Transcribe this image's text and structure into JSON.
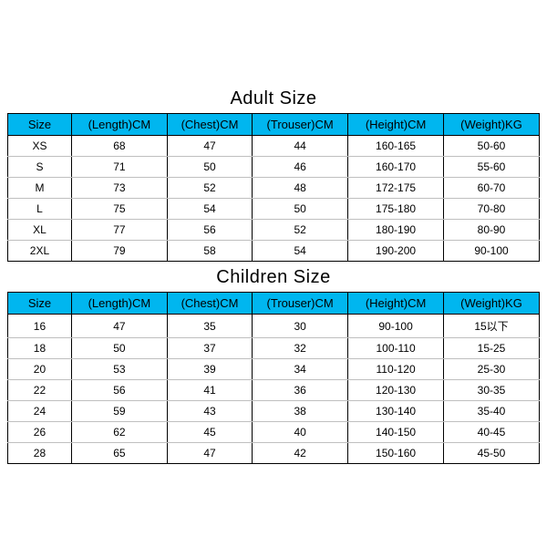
{
  "adult": {
    "title": "Adult Size",
    "header_bg": "#00b6ef",
    "columns": [
      "Size",
      "(Length)CM",
      "(Chest)CM",
      "(Trouser)CM",
      "(Height)CM",
      "(Weight)KG"
    ],
    "rows": [
      [
        "XS",
        "68",
        "47",
        "44",
        "160-165",
        "50-60"
      ],
      [
        "S",
        "71",
        "50",
        "46",
        "160-170",
        "55-60"
      ],
      [
        "M",
        "73",
        "52",
        "48",
        "172-175",
        "60-70"
      ],
      [
        "L",
        "75",
        "54",
        "50",
        "175-180",
        "70-80"
      ],
      [
        "XL",
        "77",
        "56",
        "52",
        "180-190",
        "80-90"
      ],
      [
        "2XL",
        "79",
        "58",
        "54",
        "190-200",
        "90-100"
      ]
    ]
  },
  "children": {
    "title": "Children Size",
    "header_bg": "#00b6ef",
    "columns": [
      "Size",
      "(Length)CM",
      "(Chest)CM",
      "(Trouser)CM",
      "(Height)CM",
      "(Weight)KG"
    ],
    "rows": [
      [
        "16",
        "47",
        "35",
        "30",
        "90-100",
        "15以下"
      ],
      [
        "18",
        "50",
        "37",
        "32",
        "100-110",
        "15-25"
      ],
      [
        "20",
        "53",
        "39",
        "34",
        "110-120",
        "25-30"
      ],
      [
        "22",
        "56",
        "41",
        "36",
        "120-130",
        "30-35"
      ],
      [
        "24",
        "59",
        "43",
        "38",
        "130-140",
        "35-40"
      ],
      [
        "26",
        "62",
        "45",
        "40",
        "140-150",
        "40-45"
      ],
      [
        "28",
        "65",
        "47",
        "42",
        "150-160",
        "45-50"
      ]
    ]
  }
}
